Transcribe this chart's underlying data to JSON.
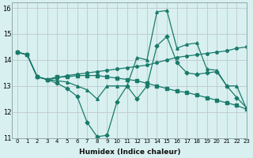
{
  "xlabel": "Humidex (Indice chaleur)",
  "bg_color": "#d8f0f0",
  "grid_color": "#c0c8d0",
  "line_color": "#1a7a6a",
  "xlim": [
    -0.5,
    23
  ],
  "ylim": [
    11,
    16.2
  ],
  "yticks": [
    11,
    12,
    13,
    14,
    15,
    16
  ],
  "xticks": [
    0,
    1,
    2,
    3,
    4,
    5,
    6,
    7,
    8,
    9,
    10,
    11,
    12,
    13,
    14,
    15,
    16,
    17,
    18,
    19,
    20,
    21,
    22,
    23
  ],
  "series": [
    {
      "x": [
        0,
        1,
        2,
        3,
        4,
        5,
        6,
        7,
        8,
        9,
        10,
        11,
        12,
        13,
        14,
        15,
        16,
        17,
        18,
        19,
        20,
        21,
        22,
        23
      ],
      "y": [
        14.3,
        14.2,
        13.35,
        13.25,
        13.2,
        13.15,
        13.0,
        12.85,
        12.5,
        13.0,
        13.0,
        13.0,
        14.1,
        14.0,
        15.85,
        15.9,
        14.45,
        14.6,
        14.65,
        13.65,
        13.6,
        13.0,
        13.0,
        12.1
      ]
    },
    {
      "x": [
        0,
        1,
        2,
        3,
        4,
        5,
        6,
        7,
        8,
        9,
        10,
        11,
        12,
        13,
        14,
        15,
        16,
        17,
        18,
        19,
        20,
        21,
        22,
        23
      ],
      "y": [
        14.3,
        14.2,
        13.35,
        13.25,
        13.3,
        13.4,
        13.45,
        13.5,
        13.55,
        13.6,
        13.65,
        13.7,
        13.75,
        13.8,
        13.9,
        14.0,
        14.1,
        14.15,
        14.2,
        14.25,
        14.3,
        14.35,
        14.45,
        14.5
      ]
    },
    {
      "x": [
        0,
        1,
        2,
        3,
        4,
        5,
        6,
        7,
        8,
        9,
        10,
        11,
        12,
        13,
        14,
        15,
        16,
        17,
        18,
        19,
        20,
        21,
        22,
        23
      ],
      "y": [
        14.3,
        14.2,
        13.35,
        13.25,
        13.1,
        12.9,
        12.6,
        11.6,
        11.05,
        11.1,
        12.4,
        13.0,
        12.5,
        13.0,
        14.55,
        14.9,
        13.9,
        13.5,
        13.45,
        13.5,
        13.55,
        13.0,
        12.55,
        12.15
      ]
    },
    {
      "x": [
        0,
        1,
        2,
        3,
        4,
        5,
        6,
        7,
        8,
        9,
        10,
        11,
        12,
        13,
        14,
        15,
        16,
        17,
        18,
        19,
        20,
        21,
        22,
        23
      ],
      "y": [
        14.3,
        14.2,
        13.35,
        13.25,
        13.35,
        13.35,
        13.4,
        13.4,
        13.4,
        13.35,
        13.3,
        13.25,
        13.2,
        13.1,
        13.0,
        12.9,
        12.8,
        12.75,
        12.65,
        12.55,
        12.45,
        12.35,
        12.25,
        12.1
      ]
    }
  ]
}
